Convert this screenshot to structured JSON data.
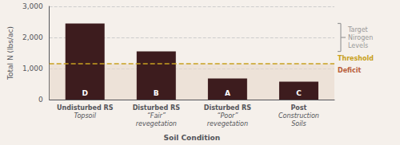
{
  "chart_data": {
    "type": "bar",
    "categories": [
      "Undisturbed RS\nTopsoil",
      "Disturbed RS\n“Fair”\nrevegetation",
      "Disturbed RS\n“Poor”\nrevegetation",
      "Post\nConstruction\nSoils"
    ],
    "values": [
      2450,
      1550,
      680,
      580
    ],
    "bar_labels": [
      "D",
      "B",
      "A",
      "C"
    ],
    "color": "#3d1c1e",
    "xlabel": "Soil Condition",
    "ylabel": "Total N (lbs/ac)",
    "ylim": [
      0,
      3000
    ],
    "yticks": [
      0,
      {
        "value": 1000,
        "label": "1,000"
      },
      {
        "value": 2000,
        "label": "2,000"
      },
      {
        "value": 3000,
        "label": "3,000"
      }
    ],
    "grid": true,
    "grid_color": "#cccccc",
    "threshold": 1150,
    "threshold_label": "Threshold",
    "threshold_color": "#c8a020",
    "deficit_label": "Deficit",
    "deficit_color": "#b85c38",
    "deficit_band_color": "#e8d8cc",
    "target_range": [
      1550,
      2450
    ],
    "target_label": "Target\nNirogen\nLevels",
    "target_color": "#999999",
    "background_color": "#f5f0eb"
  }
}
